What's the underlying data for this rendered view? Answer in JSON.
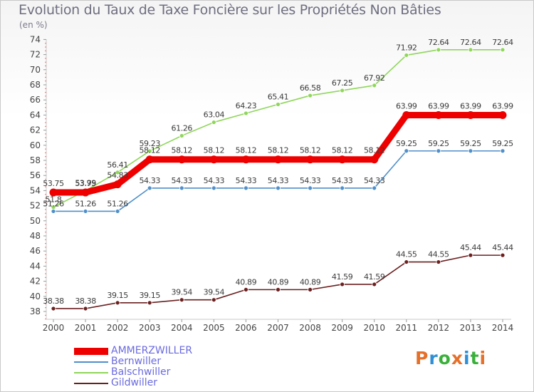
{
  "title": "Evolution du Taux de Taxe Foncière sur les Propriétés Non Bâties",
  "unit": "(en %)",
  "logo": {
    "text": "Proxiti",
    "colors": [
      "#e5702a",
      "#2f8fd6",
      "#3ab03a",
      "#e5702a",
      "#2f8fd6",
      "#3ab03a",
      "#e5702a"
    ]
  },
  "chart_data": {
    "type": "line",
    "x": [
      2000,
      2001,
      2002,
      2003,
      2004,
      2005,
      2006,
      2007,
      2008,
      2009,
      2010,
      2011,
      2012,
      2013,
      2014
    ],
    "ylim": [
      37,
      74
    ],
    "yticks": [
      38,
      40,
      42,
      44,
      46,
      48,
      50,
      52,
      54,
      56,
      58,
      60,
      62,
      64,
      66,
      68,
      70,
      72,
      74
    ],
    "grid": false,
    "legend": "bottom-left",
    "series": [
      {
        "name": "AMMERZWILLER",
        "color": "#ee0000",
        "width": "thick",
        "values": [
          53.75,
          53.75,
          54.83,
          58.12,
          58.12,
          58.12,
          58.12,
          58.12,
          58.12,
          58.12,
          58.12,
          63.99,
          63.99,
          63.99,
          63.99
        ],
        "labels": [
          "53.75",
          "53.75",
          "54.83",
          "58.12",
          "58.12",
          "58.12",
          "58.12",
          "58.12",
          "58.12",
          "58.12",
          "58.12",
          "63.99",
          "63.99",
          "63.99",
          "63.99"
        ]
      },
      {
        "name": "Bernwiller",
        "color": "#4f8fca",
        "width": "thin",
        "values": [
          51.26,
          51.26,
          51.26,
          54.33,
          54.33,
          54.33,
          54.33,
          54.33,
          54.33,
          54.33,
          54.33,
          59.25,
          59.25,
          59.25,
          59.25
        ],
        "labels": [
          "51.26",
          "51.26",
          "51.26",
          "54.33",
          "54.33",
          "54.33",
          "54.33",
          "54.33",
          "54.33",
          "54.33",
          "54.33",
          "59.25",
          "59.25",
          "59.25",
          "59.25"
        ]
      },
      {
        "name": "Balschwiller",
        "color": "#8fd65a",
        "width": "thin",
        "values": [
          51.8,
          53.99,
          56.41,
          59.23,
          61.26,
          63.04,
          64.23,
          65.41,
          66.58,
          67.25,
          67.92,
          71.92,
          72.64,
          72.64,
          72.64
        ],
        "labels": [
          "51.8",
          "53.99",
          "56.41",
          "59.23",
          "61.26",
          "63.04",
          "64.23",
          "65.41",
          "66.58",
          "67.25",
          "67.92",
          "71.92",
          "72.64",
          "72.64",
          "72.64"
        ]
      },
      {
        "name": "Gildwiller",
        "color": "#6b1f1f",
        "width": "thin",
        "values": [
          38.38,
          38.38,
          39.15,
          39.15,
          39.54,
          39.54,
          40.89,
          40.89,
          40.89,
          41.59,
          41.59,
          44.55,
          44.55,
          45.44,
          45.44
        ],
        "labels": [
          "38.38",
          "38.38",
          "39.15",
          "39.15",
          "39.54",
          "39.54",
          "40.89",
          "40.89",
          "40.89",
          "41.59",
          "41.59",
          "44.55",
          "44.55",
          "45.44",
          "45.44"
        ]
      }
    ]
  }
}
